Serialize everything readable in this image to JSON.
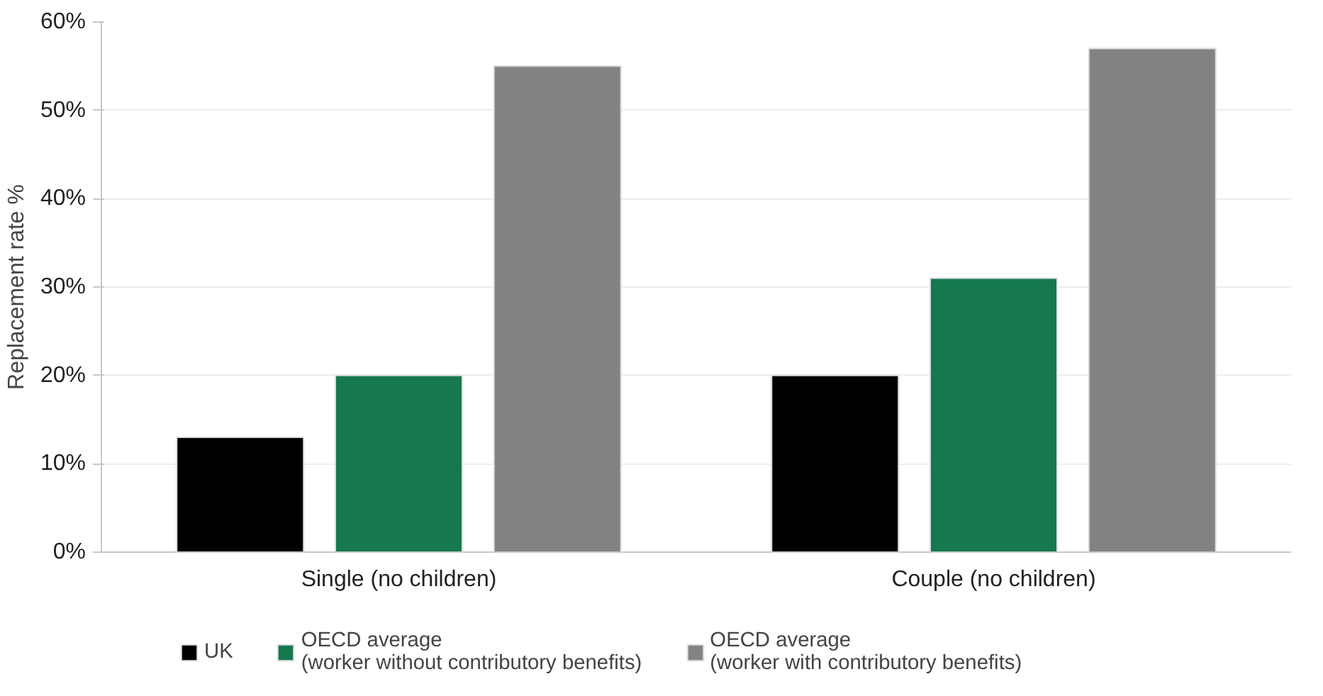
{
  "chart_data": {
    "type": "bar",
    "ylabel": "Replacement rate %",
    "categories": [
      "Single (no children)",
      "Couple (no children)"
    ],
    "series": [
      {
        "name": "UK",
        "color": "#000000",
        "values": [
          13,
          20
        ]
      },
      {
        "name": "OECD average\n(worker without contributory benefits)",
        "color": "#15784e",
        "values": [
          20,
          31
        ]
      },
      {
        "name": "OECD average\n(worker with contributory benefits)",
        "color": "#838383",
        "values": [
          55,
          57
        ]
      }
    ],
    "ylim": [
      0,
      60
    ],
    "yticks": [
      {
        "value": 0,
        "label": "0%"
      },
      {
        "value": 10,
        "label": "10%"
      },
      {
        "value": 20,
        "label": "20%"
      },
      {
        "value": 30,
        "label": "30%"
      },
      {
        "value": 40,
        "label": "40%"
      },
      {
        "value": 50,
        "label": "50%"
      },
      {
        "value": 60,
        "label": "60%"
      }
    ],
    "grid": "y",
    "legend": "bottom"
  }
}
